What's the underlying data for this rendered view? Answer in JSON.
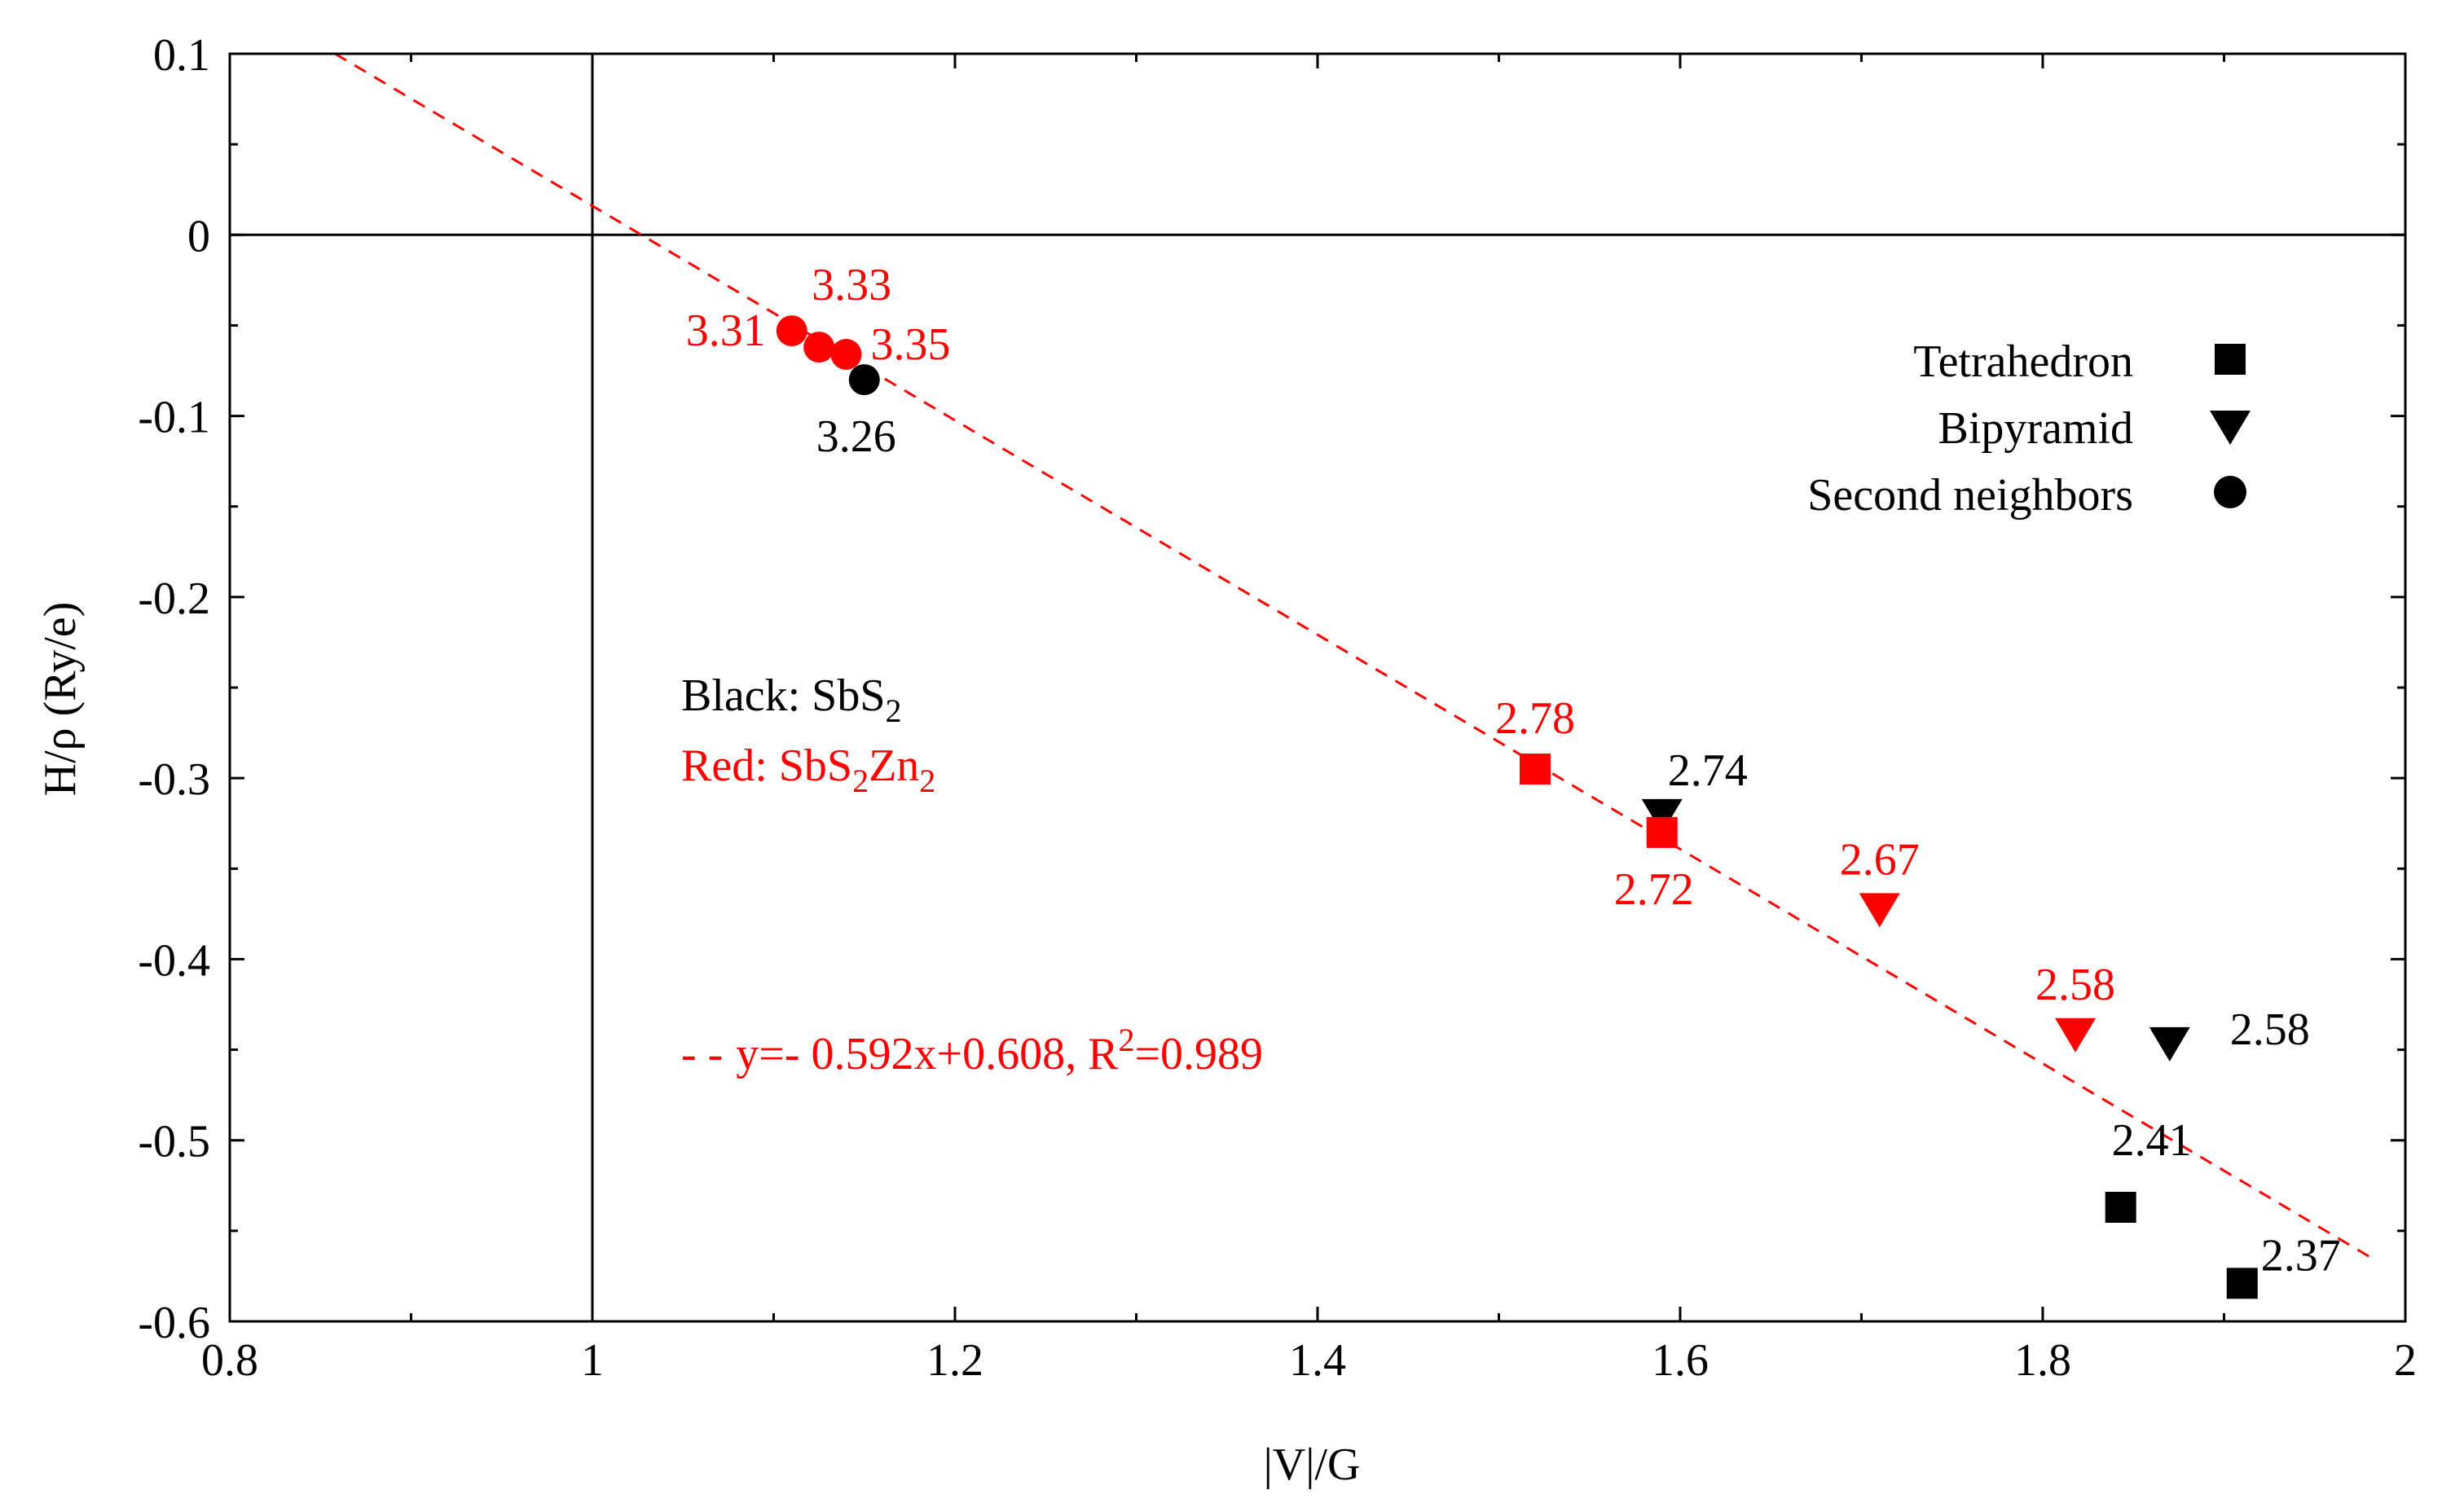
{
  "chart_data": {
    "type": "scatter",
    "xlabel": "|V|/G",
    "ylabel": "H/ρ (Ry/e)",
    "xlim": [
      0.8,
      2.0
    ],
    "ylim": [
      -0.6,
      0.1
    ],
    "x_ticks": [
      "0.8",
      "1",
      "1.2",
      "1.4",
      "1.6",
      "1.8",
      "2"
    ],
    "y_ticks": [
      "0.1",
      "0",
      "-0.1",
      "-0.2",
      "-0.3",
      "-0.4",
      "-0.5",
      "-0.6"
    ],
    "grid": false,
    "reference_lines": {
      "x": 1.0,
      "y": 0.0
    },
    "colors": {
      "black": "#000000",
      "red": "#ff0000"
    },
    "legend": {
      "placement": "top-right",
      "entries": [
        {
          "label": "Tetrahedron",
          "marker": "square"
        },
        {
          "label": "Bipyramid",
          "marker": "triangle-down"
        },
        {
          "label": "Second neighbors",
          "marker": "circle"
        }
      ]
    },
    "annotations": {
      "black_note": {
        "prefix": "Black: SbS",
        "sub": "2"
      },
      "red_note": {
        "prefix": "Red: SbS",
        "sub1": "2",
        "mid": "Zn",
        "sub2": "2"
      },
      "fit_note": {
        "dash": "- -",
        "text": "y=- 0.592x+0.608, R",
        "sup": "2",
        "suffix": "=0.989"
      }
    },
    "fit_line": {
      "slope": -0.592,
      "intercept": 0.608,
      "x_start": 0.858,
      "x_end": 1.98,
      "color": "#ff0000"
    },
    "points": [
      {
        "x": 1.11,
        "y": -0.053,
        "marker": "circle",
        "color": "red",
        "label": "3.31",
        "label_side": "left"
      },
      {
        "x": 1.125,
        "y": -0.062,
        "marker": "circle",
        "color": "red",
        "label": "3.33",
        "label_side": "above"
      },
      {
        "x": 1.14,
        "y": -0.066,
        "marker": "circle",
        "color": "red",
        "label": "3.35",
        "label_side": "right"
      },
      {
        "x": 1.15,
        "y": -0.08,
        "marker": "circle",
        "color": "black",
        "label": "3.26",
        "label_side": "below"
      },
      {
        "x": 1.52,
        "y": -0.295,
        "marker": "square",
        "color": "red",
        "label": "2.78",
        "label_side": "above"
      },
      {
        "x": 1.59,
        "y": -0.321,
        "marker": "triangle-down",
        "color": "black",
        "label": "2.74",
        "label_side": "above-right"
      },
      {
        "x": 1.59,
        "y": -0.33,
        "marker": "square",
        "color": "red",
        "label": "2.72",
        "label_side": "below"
      },
      {
        "x": 1.71,
        "y": -0.373,
        "marker": "triangle-down",
        "color": "red",
        "label": "2.67",
        "label_side": "above"
      },
      {
        "x": 1.818,
        "y": -0.442,
        "marker": "triangle-down",
        "color": "red",
        "label": "2.58",
        "label_side": "above"
      },
      {
        "x": 1.87,
        "y": -0.447,
        "marker": "triangle-down",
        "color": "black",
        "label": "2.58",
        "label_side": "right"
      },
      {
        "x": 1.843,
        "y": -0.537,
        "marker": "square",
        "color": "black",
        "label": "2.41",
        "label_side": "above"
      },
      {
        "x": 1.91,
        "y": -0.579,
        "marker": "square",
        "color": "black",
        "label": "2.37",
        "label_side": "above-right"
      }
    ]
  }
}
